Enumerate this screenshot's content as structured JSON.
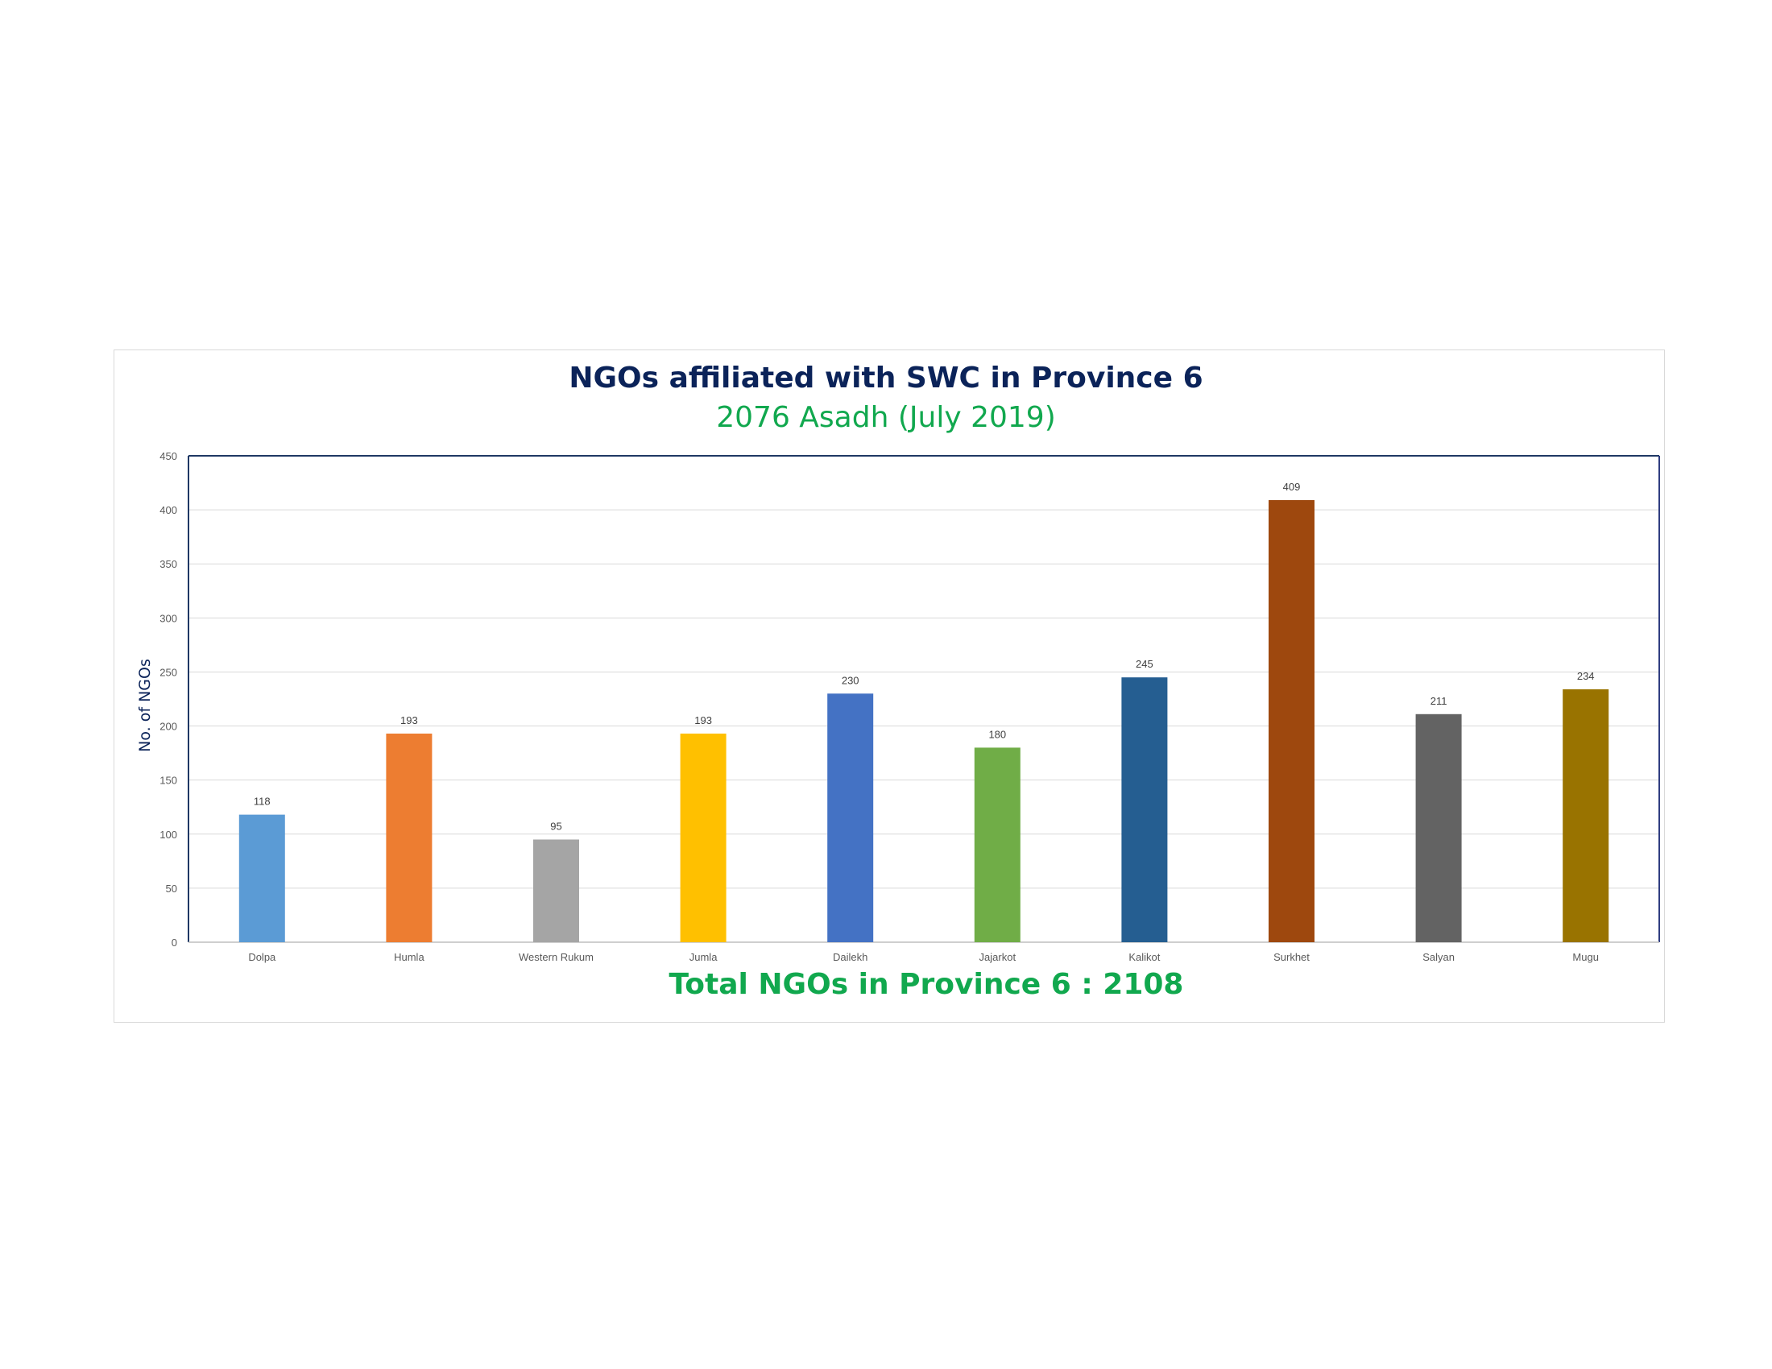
{
  "chart_data": {
    "type": "bar",
    "title": "NGOs affiliated with SWC in Province 6",
    "subtitle": "2076 Asadh (July 2019)",
    "footer": "Total NGOs in Province 6 : 2108",
    "xlabel": "",
    "ylabel": "No. of NGOs",
    "ylim": [
      0,
      450
    ],
    "yticks": [
      0,
      50,
      100,
      150,
      200,
      250,
      300,
      350,
      400,
      450
    ],
    "grid": true,
    "legend": "none",
    "categories": [
      "Dolpa",
      "Humla",
      "Western Rukum",
      "Jumla",
      "Dailekh",
      "Jajarkot",
      "Kalikot",
      "Surkhet",
      "Salyan",
      "Mugu"
    ],
    "values": [
      118,
      193,
      95,
      193,
      230,
      180,
      245,
      409,
      211,
      234
    ],
    "colors": [
      "#5b9bd5",
      "#ed7d31",
      "#a5a5a5",
      "#ffc000",
      "#4472c4",
      "#70ad47",
      "#255e91",
      "#9e480e",
      "#636363",
      "#997300"
    ]
  }
}
